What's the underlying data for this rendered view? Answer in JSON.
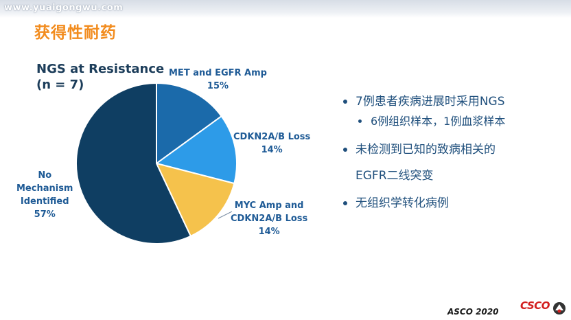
{
  "watermark": "www.yuaigongwu.com",
  "slide": {
    "title": "获得性耐药",
    "chart_heading_line1": "NGS at Resistance",
    "chart_heading_line2": "(n = 7)"
  },
  "chart_data": {
    "type": "pie",
    "title": "NGS at Resistance (n = 7)",
    "slices": [
      {
        "label": "MET and EGFR Amp",
        "value": 15,
        "value_text": "15%",
        "color": "#1b6aaa"
      },
      {
        "label": "CDKN2A/B Loss",
        "value": 14,
        "value_text": "14%",
        "color": "#2d9be8"
      },
      {
        "label": "MYC Amp and CDKN2A/B Loss",
        "value": 14,
        "value_text": "14%",
        "color": "#f5c24c"
      },
      {
        "label": "No Mechanism Identified",
        "value": 57,
        "value_text": "57%",
        "color": "#0f3e62"
      }
    ],
    "slice_labels": [
      {
        "line1": "MET and EGFR Amp",
        "line2": "15%",
        "line3": ""
      },
      {
        "line1": "CDKN2A/B Loss",
        "line2": "14%",
        "line3": ""
      },
      {
        "line1": "MYC Amp and",
        "line2": "CDKN2A/B Loss",
        "line3": "14%"
      },
      {
        "line1": "No",
        "line2": "Mechanism",
        "line3": "Identified",
        "line4": "57%"
      }
    ]
  },
  "bullets": {
    "items": [
      {
        "text": "7例患者疾病进展时采用NGS"
      },
      {
        "text": "6例组织样本，1例血浆样本"
      },
      {
        "text": "未检测到已知的致病相关的"
      },
      {
        "text": "EGFR二线突变"
      },
      {
        "text": "无组织学转化病例"
      }
    ]
  },
  "footer": {
    "conference": "ASCO 2020",
    "logo_text": "CSCO"
  }
}
